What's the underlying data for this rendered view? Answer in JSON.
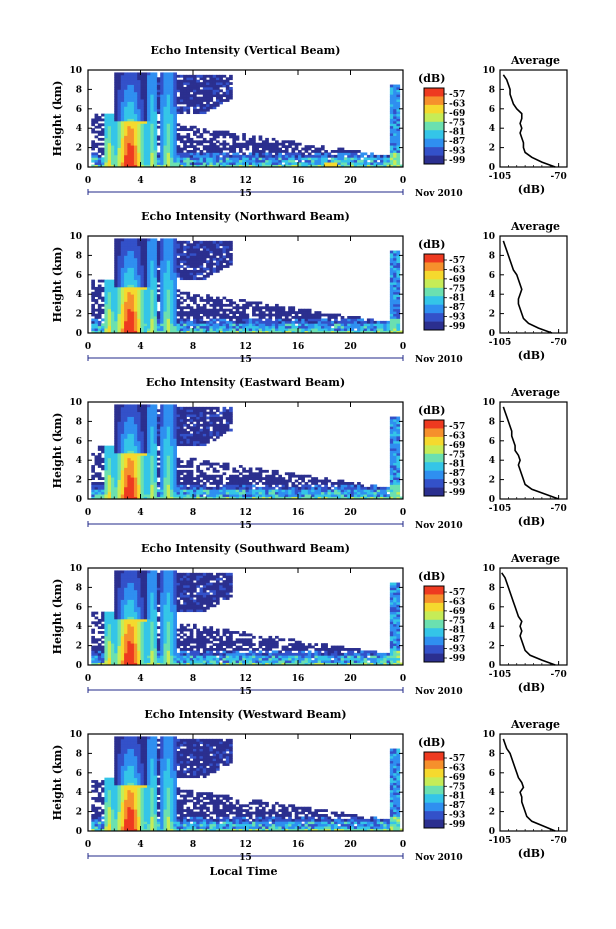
{
  "figure": {
    "xlabel": "Local Time",
    "date_label": "Nov 2010",
    "day_label": "15",
    "cbar_unit": "(dB)",
    "avg_title": "Average",
    "avg_xlabel": "(dB)"
  },
  "colors": {
    "scale": [
      "#2b2f8f",
      "#3351c9",
      "#2f8ff0",
      "#34c5e8",
      "#6be0b0",
      "#c6ec57",
      "#f5d92e",
      "#f6902c",
      "#ee3a20"
    ],
    "no_echo": "#ffffff"
  },
  "chart_data": [
    {
      "type": "heatmap",
      "title": "Echo Intensity (Vertical Beam)",
      "ylabel": "Height (km)",
      "x_ticks": [
        "0",
        "4",
        "8",
        "12",
        "16",
        "20",
        "0"
      ],
      "y_ticks": [
        "0",
        "2",
        "4",
        "6",
        "8",
        "10"
      ],
      "xlim": [
        0,
        24
      ],
      "ylim": [
        0,
        10
      ],
      "colorbar": {
        "unit": "(dB)",
        "ticks": [
          "-57",
          "-63",
          "-69",
          "-75",
          "-81",
          "-87",
          "-93",
          "-99"
        ]
      },
      "average": {
        "title": "Average",
        "xlabel": "(dB)",
        "x_ticks": [
          "-105",
          "-70"
        ],
        "y_ticks": [
          "0",
          "2",
          "4",
          "6",
          "8",
          "10"
        ],
        "xlim": [
          -105,
          -65
        ],
        "height": [
          0,
          0.5,
          1,
          1.5,
          2,
          2.5,
          3,
          3.5,
          4,
          4.5,
          5,
          5.5,
          6,
          6.5,
          7,
          7.5,
          8,
          8.5,
          9,
          9.5
        ],
        "intensity": [
          -72,
          -80,
          -86,
          -90,
          -91,
          -91,
          -92,
          -93,
          -92,
          -93,
          -92,
          -92,
          -95,
          -97,
          -98,
          -99,
          -99,
          -100,
          -101,
          -103
        ]
      }
    },
    {
      "type": "heatmap",
      "title": "Echo Intensity (Northward Beam)",
      "ylabel": "Height (km)",
      "x_ticks": [
        "0",
        "4",
        "8",
        "12",
        "16",
        "20",
        "0"
      ],
      "y_ticks": [
        "0",
        "2",
        "4",
        "6",
        "8",
        "10"
      ],
      "xlim": [
        0,
        24
      ],
      "ylim": [
        0,
        10
      ],
      "colorbar": {
        "unit": "(dB)",
        "ticks": [
          "-57",
          "-63",
          "-69",
          "-75",
          "-81",
          "-87",
          "-93",
          "-99"
        ]
      },
      "average": {
        "title": "Average",
        "xlabel": "(dB)",
        "x_ticks": [
          "-105",
          "-70"
        ],
        "y_ticks": [
          "0",
          "2",
          "4",
          "6",
          "8",
          "10"
        ],
        "xlim": [
          -105,
          -65
        ],
        "height": [
          0,
          0.5,
          1,
          1.5,
          2,
          2.5,
          3,
          3.5,
          4,
          4.5,
          5,
          5.5,
          6,
          6.5,
          7,
          7.5,
          8,
          8.5,
          9,
          9.5
        ],
        "intensity": [
          -74,
          -82,
          -88,
          -91,
          -92,
          -93,
          -94,
          -94,
          -93,
          -92,
          -93,
          -94,
          -95,
          -97,
          -98,
          -99,
          -100,
          -101,
          -102,
          -103
        ]
      }
    },
    {
      "type": "heatmap",
      "title": "Echo Intensity (Eastward Beam)",
      "ylabel": "Height (km)",
      "x_ticks": [
        "0",
        "4",
        "8",
        "12",
        "16",
        "20",
        "0"
      ],
      "y_ticks": [
        "0",
        "2",
        "4",
        "6",
        "8",
        "10"
      ],
      "xlim": [
        0,
        24
      ],
      "ylim": [
        0,
        10
      ],
      "colorbar": {
        "unit": "(dB)",
        "ticks": [
          "-57",
          "-63",
          "-69",
          "-75",
          "-81",
          "-87",
          "-93",
          "-99"
        ]
      },
      "average": {
        "title": "Average",
        "xlabel": "(dB)",
        "x_ticks": [
          "-105",
          "-70"
        ],
        "y_ticks": [
          "0",
          "2",
          "4",
          "6",
          "8",
          "10"
        ],
        "xlim": [
          -105,
          -65
        ],
        "height": [
          0,
          0.5,
          1,
          1.5,
          2,
          2.5,
          3,
          3.5,
          4,
          4.5,
          5,
          5.5,
          6,
          6.5,
          7,
          7.5,
          8,
          8.5,
          9,
          9.5
        ],
        "intensity": [
          -70,
          -78,
          -86,
          -90,
          -91,
          -92,
          -93,
          -94,
          -93,
          -94,
          -96,
          -96,
          -97,
          -98,
          -98,
          -99,
          -100,
          -101,
          -102,
          -103
        ]
      }
    },
    {
      "type": "heatmap",
      "title": "Echo Intensity (Southward Beam)",
      "ylabel": "Height (km)",
      "x_ticks": [
        "0",
        "4",
        "8",
        "12",
        "16",
        "20",
        "0"
      ],
      "y_ticks": [
        "0",
        "2",
        "4",
        "6",
        "8",
        "10"
      ],
      "xlim": [
        0,
        24
      ],
      "ylim": [
        0,
        10
      ],
      "colorbar": {
        "unit": "(dB)",
        "ticks": [
          "-57",
          "-63",
          "-69",
          "-75",
          "-81",
          "-87",
          "-93",
          "-99"
        ]
      },
      "average": {
        "title": "Average",
        "xlabel": "(dB)",
        "x_ticks": [
          "-105",
          "-70"
        ],
        "y_ticks": [
          "0",
          "2",
          "4",
          "6",
          "8",
          "10"
        ],
        "xlim": [
          -105,
          -65
        ],
        "height": [
          0,
          0.5,
          1,
          1.5,
          2,
          2.5,
          3,
          3.5,
          4,
          4.5,
          5,
          5.5,
          6,
          6.5,
          7,
          7.5,
          8,
          8.5,
          9,
          9.5
        ],
        "intensity": [
          -72,
          -80,
          -87,
          -90,
          -91,
          -92,
          -93,
          -92,
          -93,
          -92,
          -94,
          -95,
          -96,
          -97,
          -98,
          -99,
          -100,
          -101,
          -102,
          -104
        ]
      }
    },
    {
      "type": "heatmap",
      "title": "Echo Intensity (Westward Beam)",
      "ylabel": "Height (km)",
      "x_ticks": [
        "0",
        "4",
        "8",
        "12",
        "16",
        "20",
        "0"
      ],
      "y_ticks": [
        "0",
        "2",
        "4",
        "6",
        "8",
        "10"
      ],
      "xlim": [
        0,
        24
      ],
      "ylim": [
        0,
        10
      ],
      "colorbar": {
        "unit": "(dB)",
        "ticks": [
          "-57",
          "-63",
          "-69",
          "-75",
          "-81",
          "-87",
          "-93",
          "-99"
        ]
      },
      "average": {
        "title": "Average",
        "xlabel": "(dB)",
        "x_ticks": [
          "-105",
          "-70"
        ],
        "y_ticks": [
          "0",
          "2",
          "4",
          "6",
          "8",
          "10"
        ],
        "xlim": [
          -105,
          -65
        ],
        "height": [
          0,
          0.5,
          1,
          1.5,
          2,
          2.5,
          3,
          3.5,
          4,
          4.5,
          5,
          5.5,
          6,
          6.5,
          7,
          7.5,
          8,
          8.5,
          9,
          9.5
        ],
        "intensity": [
          -72,
          -79,
          -86,
          -89,
          -90,
          -91,
          -92,
          -92,
          -93,
          -91,
          -92,
          -94,
          -95,
          -96,
          -97,
          -98,
          -99,
          -101,
          -102,
          -103
        ]
      }
    }
  ]
}
